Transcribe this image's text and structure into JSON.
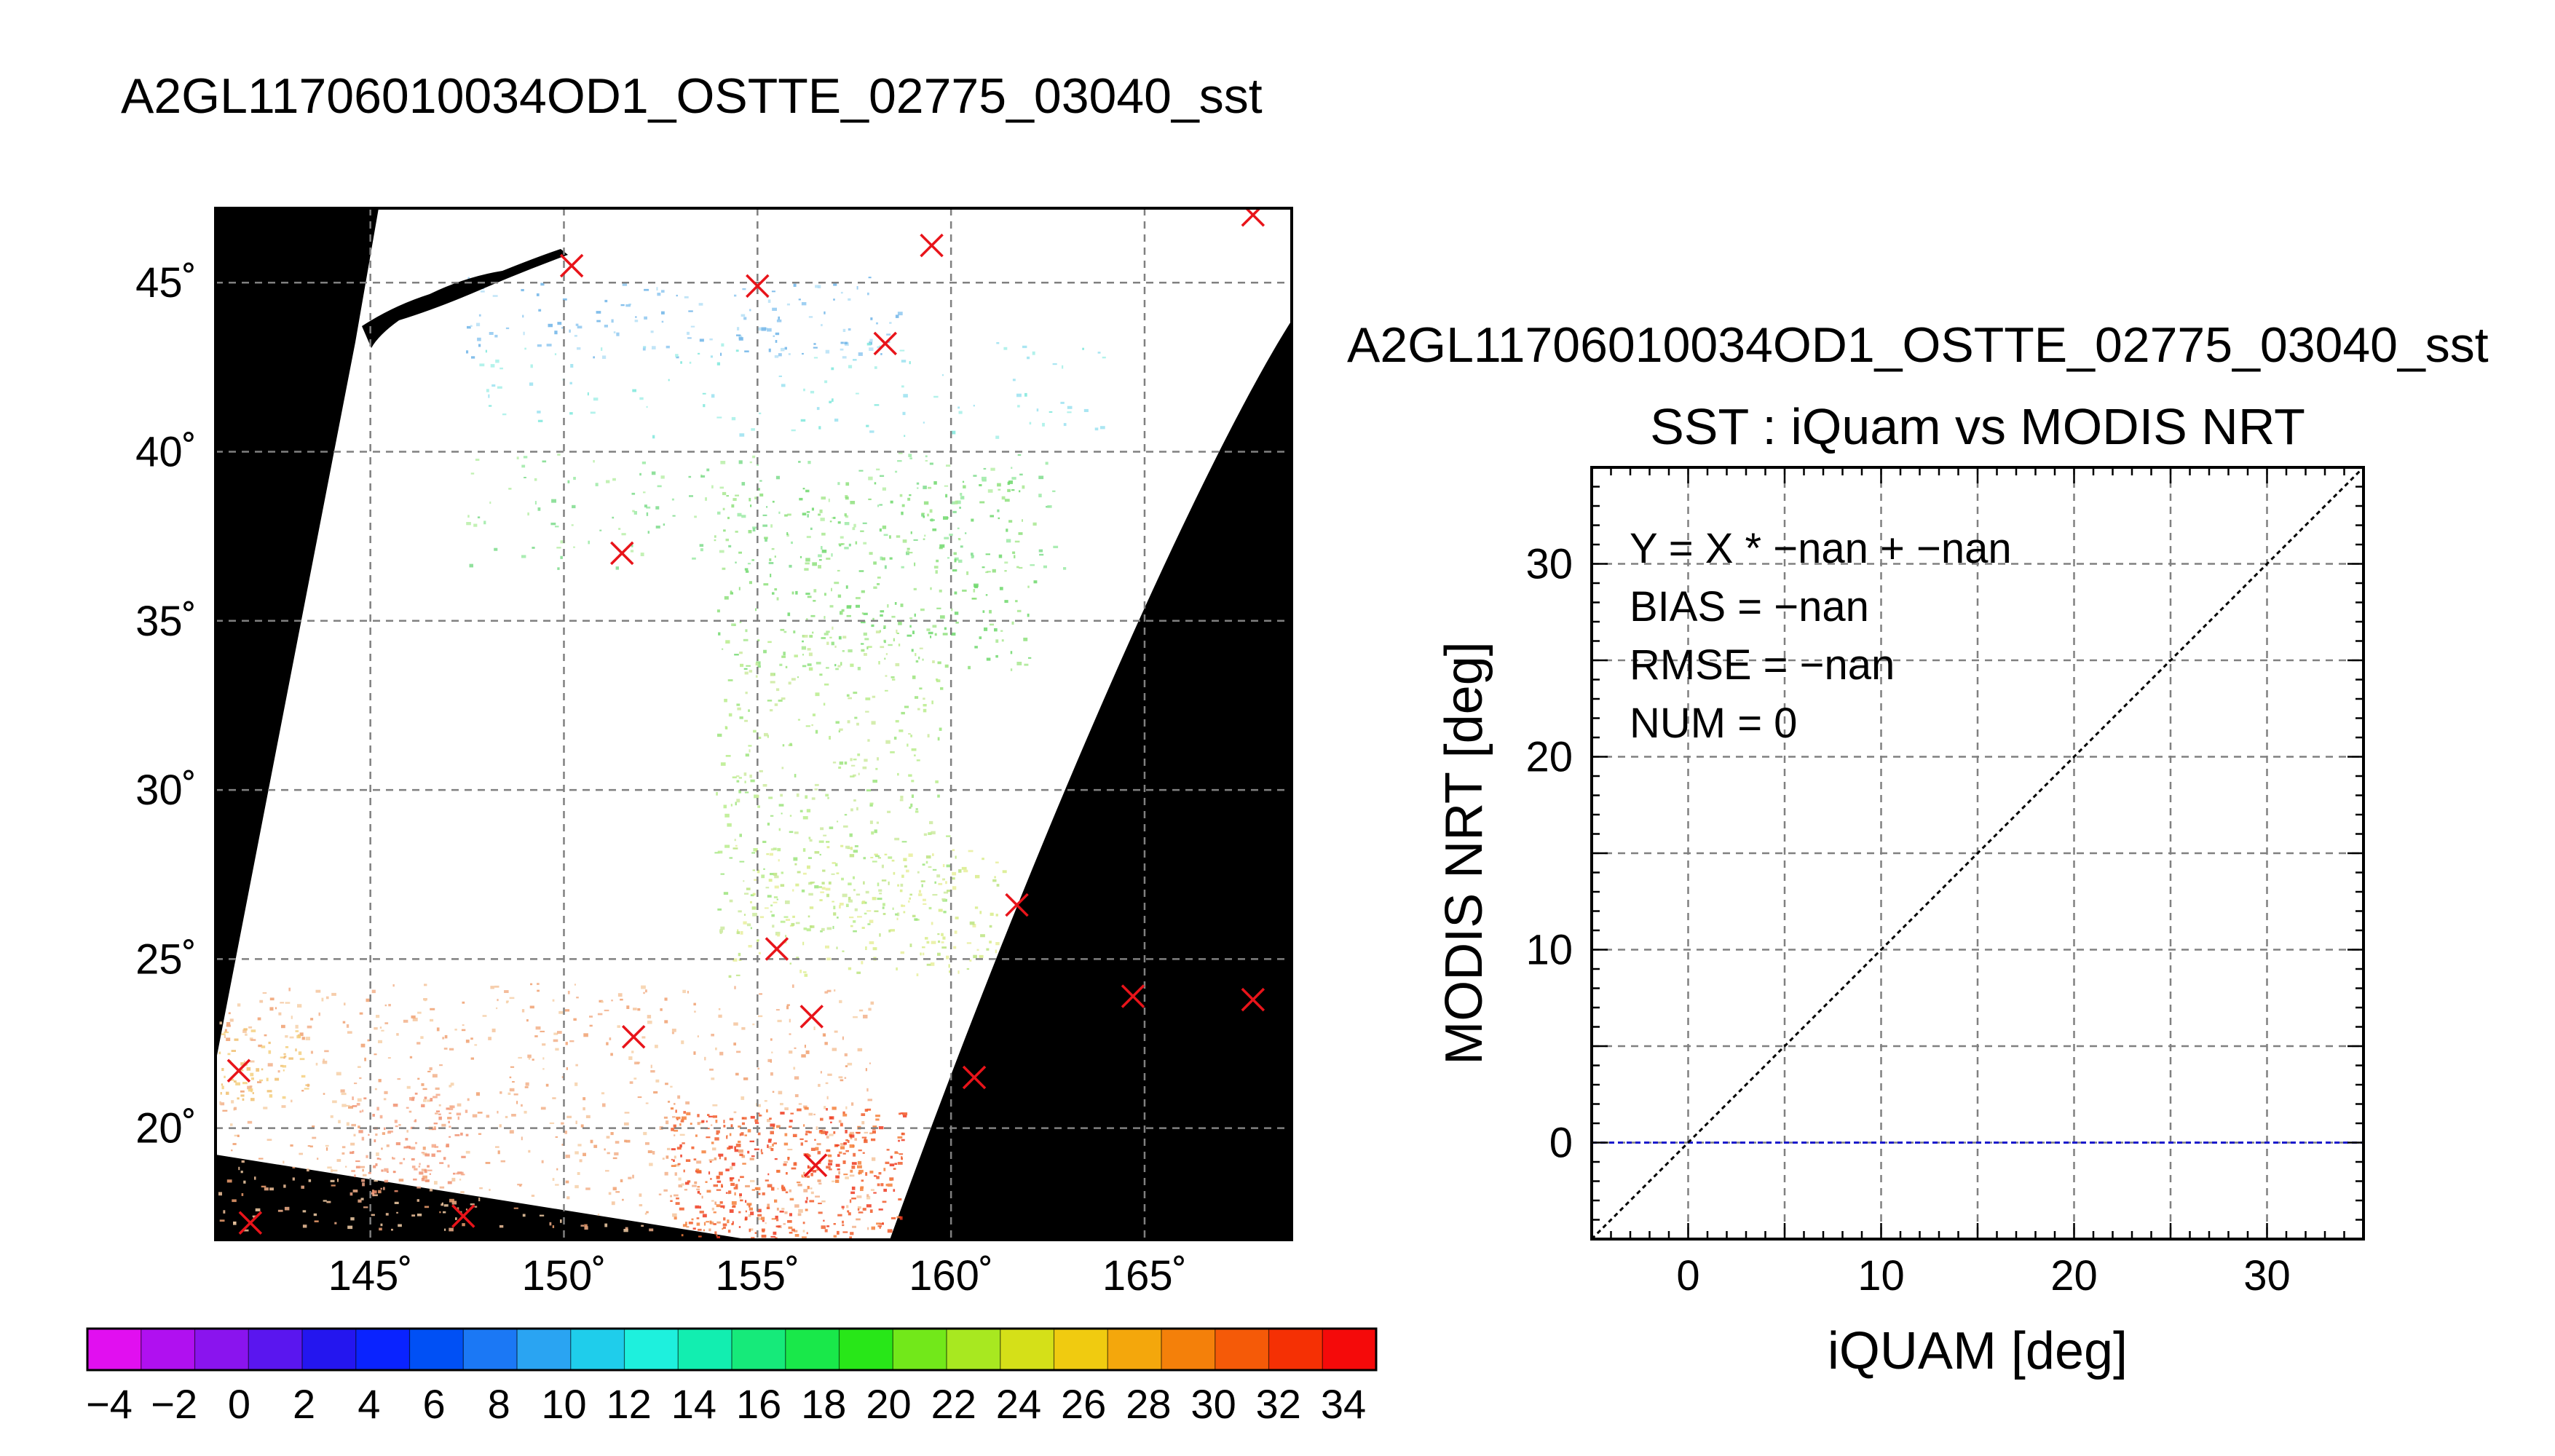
{
  "main_title": "A2GL11706010034OD1_OSTTE_02775_03040_sst",
  "scatter_file_title": "A2GL11706010034OD1_OSTTE_02775_03040_sst",
  "colors": {
    "background": "#000000",
    "swath": "#ffffff",
    "marker": "#e8141a",
    "grid": "#808080",
    "zero_line": "#1a1acc"
  },
  "chart_data": [
    {
      "type": "map",
      "lon_ticks": [
        "145˚",
        "150˚",
        "155˚",
        "160˚",
        "165˚"
      ],
      "lat_ticks": [
        "20˚",
        "25˚",
        "30˚",
        "35˚",
        "40˚",
        "45˚"
      ],
      "lon_range": [
        141,
        168.8
      ],
      "lat_range": [
        16.7,
        47.2
      ],
      "grid": true,
      "buoy_markers": [
        {
          "lon": 150.2,
          "lat": 45.5
        },
        {
          "lon": 155.0,
          "lat": 44.9
        },
        {
          "lon": 159.5,
          "lat": 46.1
        },
        {
          "lon": 167.8,
          "lat": 47.0
        },
        {
          "lon": 158.3,
          "lat": 43.2
        },
        {
          "lon": 151.5,
          "lat": 37.0
        },
        {
          "lon": 161.7,
          "lat": 26.6
        },
        {
          "lon": 155.5,
          "lat": 25.3
        },
        {
          "lon": 164.7,
          "lat": 23.9
        },
        {
          "lon": 167.8,
          "lat": 23.8
        },
        {
          "lon": 156.4,
          "lat": 23.3
        },
        {
          "lon": 151.8,
          "lat": 22.7
        },
        {
          "lon": 141.6,
          "lat": 21.7
        },
        {
          "lon": 160.6,
          "lat": 21.5
        },
        {
          "lon": 156.5,
          "lat": 18.9
        },
        {
          "lon": 141.9,
          "lat": 17.2
        },
        {
          "lon": 147.4,
          "lat": 17.4
        }
      ]
    },
    {
      "type": "colorbar",
      "labels": [
        "−4",
        "−2",
        "0",
        "2",
        "4",
        "6",
        "8",
        "10",
        "12",
        "14",
        "16",
        "18",
        "20",
        "22",
        "24",
        "26",
        "28",
        "30",
        "32",
        "34"
      ],
      "colors": [
        "#e10ff0",
        "#b010f0",
        "#8a14ee",
        "#5a16ef",
        "#2416ef",
        "#0a23ff",
        "#0050f5",
        "#1b78f5",
        "#2aa4f2",
        "#1fcdeb",
        "#1ef0dd",
        "#12eeb0",
        "#16ea7a",
        "#19e84a",
        "#28e718",
        "#72e81a",
        "#a8e820",
        "#d5e018",
        "#f0cb10",
        "#f4a70c",
        "#f4800a",
        "#f55a08",
        "#f53004",
        "#f50a0a"
      ]
    },
    {
      "type": "scatter",
      "title": "SST : iQuam vs MODIS NRT",
      "xlabel": "iQUAM [deg]",
      "ylabel": "MODIS NRT [deg]",
      "xlim": [
        -5,
        35
      ],
      "ylim": [
        -5,
        35
      ],
      "xticks": [
        "0",
        "10",
        "20",
        "30"
      ],
      "yticks": [
        "0",
        "10",
        "20",
        "30"
      ],
      "grid": true,
      "points": [],
      "identity_line": true,
      "zero_line": 0,
      "stats": [
        "Y = X * −nan + −nan",
        "BIAS = −nan",
        "RMSE = −nan",
        "NUM = 0"
      ]
    }
  ]
}
